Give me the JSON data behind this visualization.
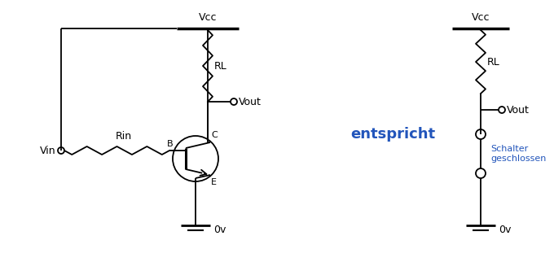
{
  "bg_color": "#ffffff",
  "line_color": "#000000",
  "text_color": "#000000",
  "blue_color": "#2255bb",
  "figsize": [
    6.8,
    3.22
  ],
  "dpi": 100,
  "entspricht_text": "entspricht",
  "vcc_text": "Vcc",
  "rl_text": "RL",
  "vout_text": "Vout",
  "ov_text": "0v",
  "rin_text": "Rin",
  "vin_text": "Vin",
  "b_text": "B",
  "c_text": "C",
  "e_text": "E",
  "schalter_text": "Schalter\ngeschlossen"
}
